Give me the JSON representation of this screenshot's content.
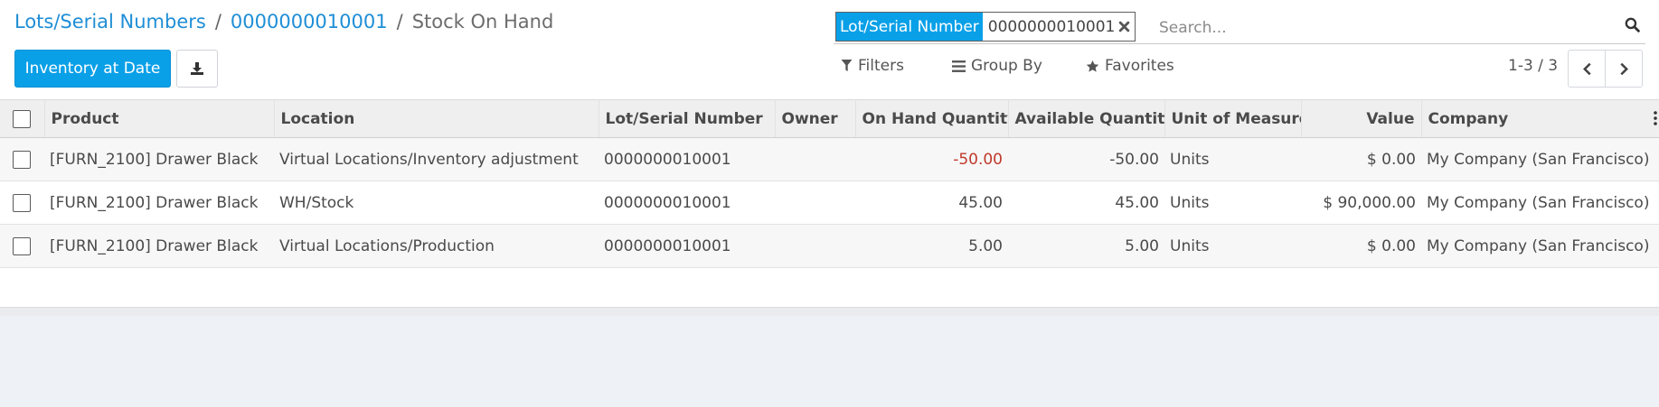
{
  "breadcrumb": {
    "parent": "Lots/Serial Numbers",
    "lot": "0000000010001",
    "current": "Stock On Hand",
    "separator": "/"
  },
  "buttons": {
    "inventory_at_date": "Inventory at Date",
    "download_icon": "download-icon"
  },
  "search": {
    "facet_label": "Lot/Serial Number",
    "facet_value": "0000000010001",
    "placeholder": "Search...",
    "icon": "search-icon"
  },
  "filters": {
    "filters_label": "Filters",
    "group_by_label": "Group By",
    "favorites_label": "Favorites"
  },
  "pager": {
    "value": "1-3 / 3"
  },
  "colors": {
    "primary": "#0aa0e8",
    "link": "#1f8ed6",
    "negative": "#c0392b"
  },
  "table": {
    "columns": [
      "Product",
      "Location",
      "Lot/Serial Number",
      "Owner",
      "On Hand Quantity",
      "Available Quantity",
      "Unit of Measure",
      "Value",
      "Company"
    ],
    "rows": [
      {
        "product": "[FURN_2100] Drawer Black",
        "location": "Virtual Locations/Inventory adjustment",
        "lot": "0000000010001",
        "owner": "",
        "on_hand": "-50.00",
        "available": "-50.00",
        "uom": "Units",
        "value": "$ 0.00",
        "company": "My Company (San Francisco)"
      },
      {
        "product": "[FURN_2100] Drawer Black",
        "location": "WH/Stock",
        "lot": "0000000010001",
        "owner": "",
        "on_hand": "45.00",
        "available": "45.00",
        "uom": "Units",
        "value": "$ 90,000.00",
        "company": "My Company (San Francisco)"
      },
      {
        "product": "[FURN_2100] Drawer Black",
        "location": "Virtual Locations/Production",
        "lot": "0000000010001",
        "owner": "",
        "on_hand": "5.00",
        "available": "5.00",
        "uom": "Units",
        "value": "$ 0.00",
        "company": "My Company (San Francisco)"
      }
    ]
  }
}
